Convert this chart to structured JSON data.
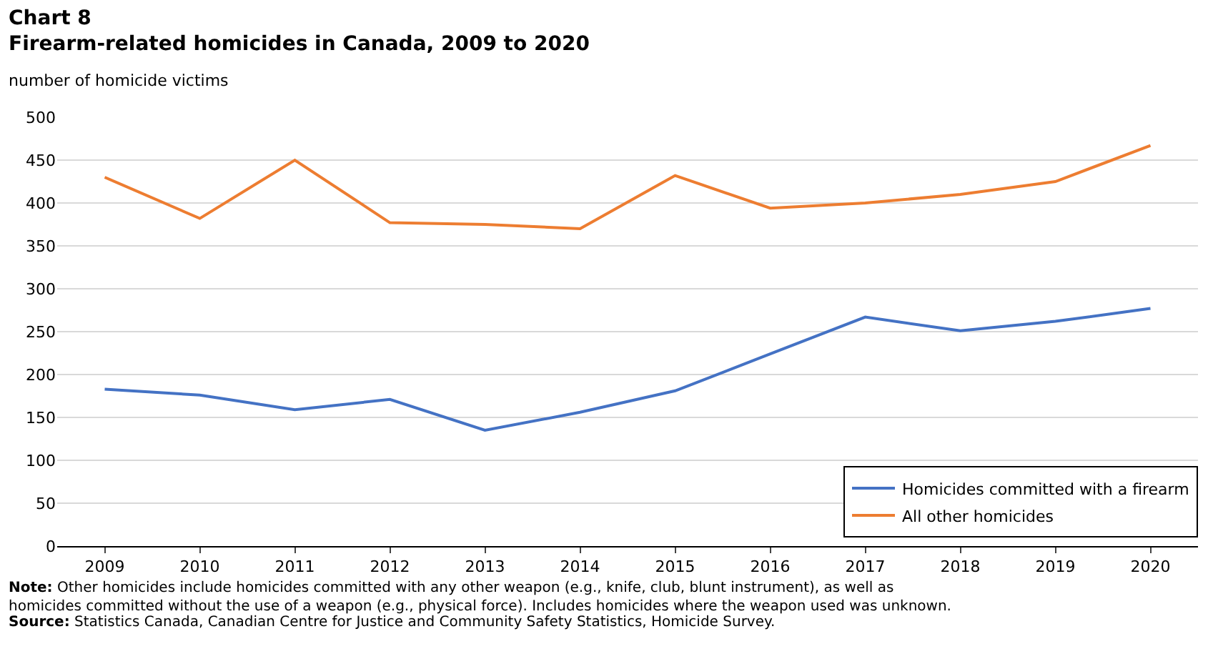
{
  "chart_data": {
    "type": "line",
    "title": "Chart 8",
    "subtitle": "Firearm-related homicides in Canada, 2009 to 2020",
    "ylabel": "number of homicide victims",
    "categories": [
      "2009",
      "2010",
      "2011",
      "2012",
      "2013",
      "2014",
      "2015",
      "2016",
      "2017",
      "2018",
      "2019",
      "2020"
    ],
    "series": [
      {
        "name": "Homicides committed with a firearm",
        "color": "#4472c4",
        "values": [
          183,
          176,
          159,
          171,
          135,
          156,
          181,
          224,
          267,
          251,
          262,
          277
        ]
      },
      {
        "name": "All other homicides",
        "color": "#ed7d31",
        "values": [
          430,
          382,
          450,
          377,
          375,
          370,
          432,
          394,
          400,
          410,
          425,
          467
        ]
      }
    ],
    "ylim": [
      0,
      500
    ],
    "yticks": [
      0,
      50,
      100,
      150,
      200,
      250,
      300,
      350,
      400,
      450,
      500
    ],
    "grid": "y",
    "legend": "bottom right",
    "marker": "none",
    "line_style": "solid",
    "annotations": [
      "Note: Other homicides include homicides committed with any other weapon (e.g., knife, club, blunt instrument), as well as homicides committed without the use of a weapon (e.g., physical force). Includes homicides where the weapon used was unknown.",
      "Source: Statistics Canada, Canadian Centre for Justice and Community Safety Statistics, Homicide Survey."
    ]
  }
}
